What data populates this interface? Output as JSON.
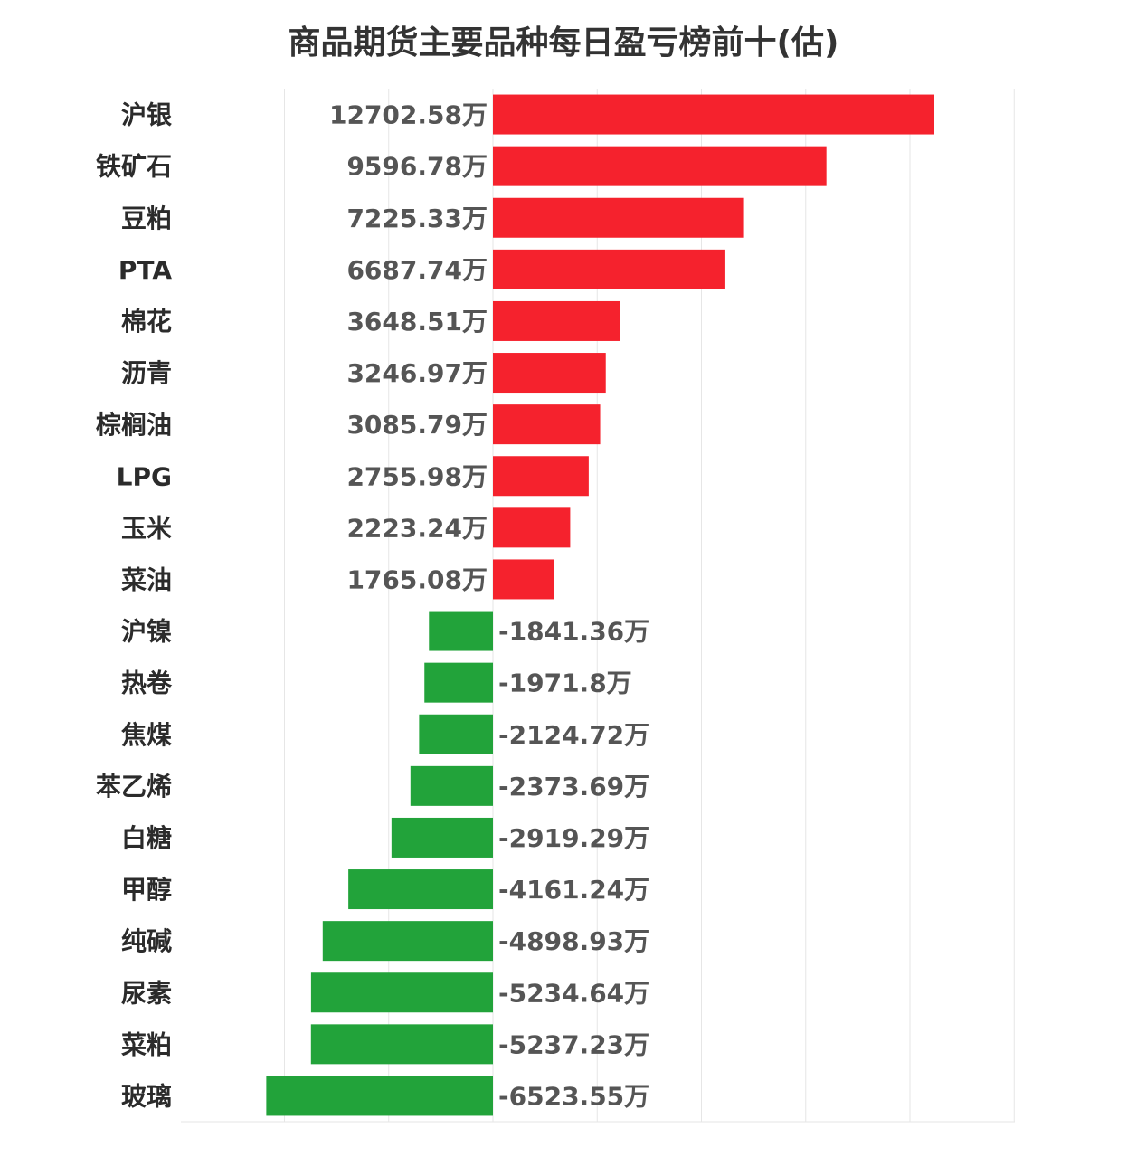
{
  "chart_data": {
    "type": "bar",
    "orientation": "horizontal",
    "title": "商品期货主要品种每日盈亏榜前十(估)",
    "unit": "万",
    "categories": [
      "沪银",
      "铁矿石",
      "豆粕",
      "PTA",
      "棉花",
      "沥青",
      "棕榈油",
      "LPG",
      "玉米",
      "菜油",
      "沪镍",
      "热卷",
      "焦煤",
      "苯乙烯",
      "白糖",
      "甲醇",
      "纯碱",
      "尿素",
      "菜粕",
      "玻璃"
    ],
    "values": [
      12702.58,
      9596.78,
      7225.33,
      6687.74,
      3648.51,
      3246.97,
      3085.79,
      2755.98,
      2223.24,
      1765.08,
      -1841.36,
      -1971.8,
      -2124.72,
      -2373.69,
      -2919.29,
      -4161.24,
      -4898.93,
      -5234.64,
      -5237.23,
      -6523.55
    ],
    "value_labels": [
      "12702.58万",
      "9596.78万",
      "7225.33万",
      "6687.74万",
      "3648.51万",
      "3246.97万",
      "3085.79万",
      "2755.98万",
      "2223.24万",
      "1765.08万",
      "-1841.36万",
      "-1971.8万",
      "-2124.72万",
      "-2373.69万",
      "-2919.29万",
      "-4161.24万",
      "-4898.93万",
      "-5234.64万",
      "-5237.23万",
      "-6523.55万"
    ],
    "xlim": [
      -9000,
      15000
    ],
    "grid_step": 3000,
    "grid": true,
    "colors": {
      "positive": "#f5222d",
      "negative": "#22a33a",
      "grid": "#e6e6e6"
    }
  }
}
